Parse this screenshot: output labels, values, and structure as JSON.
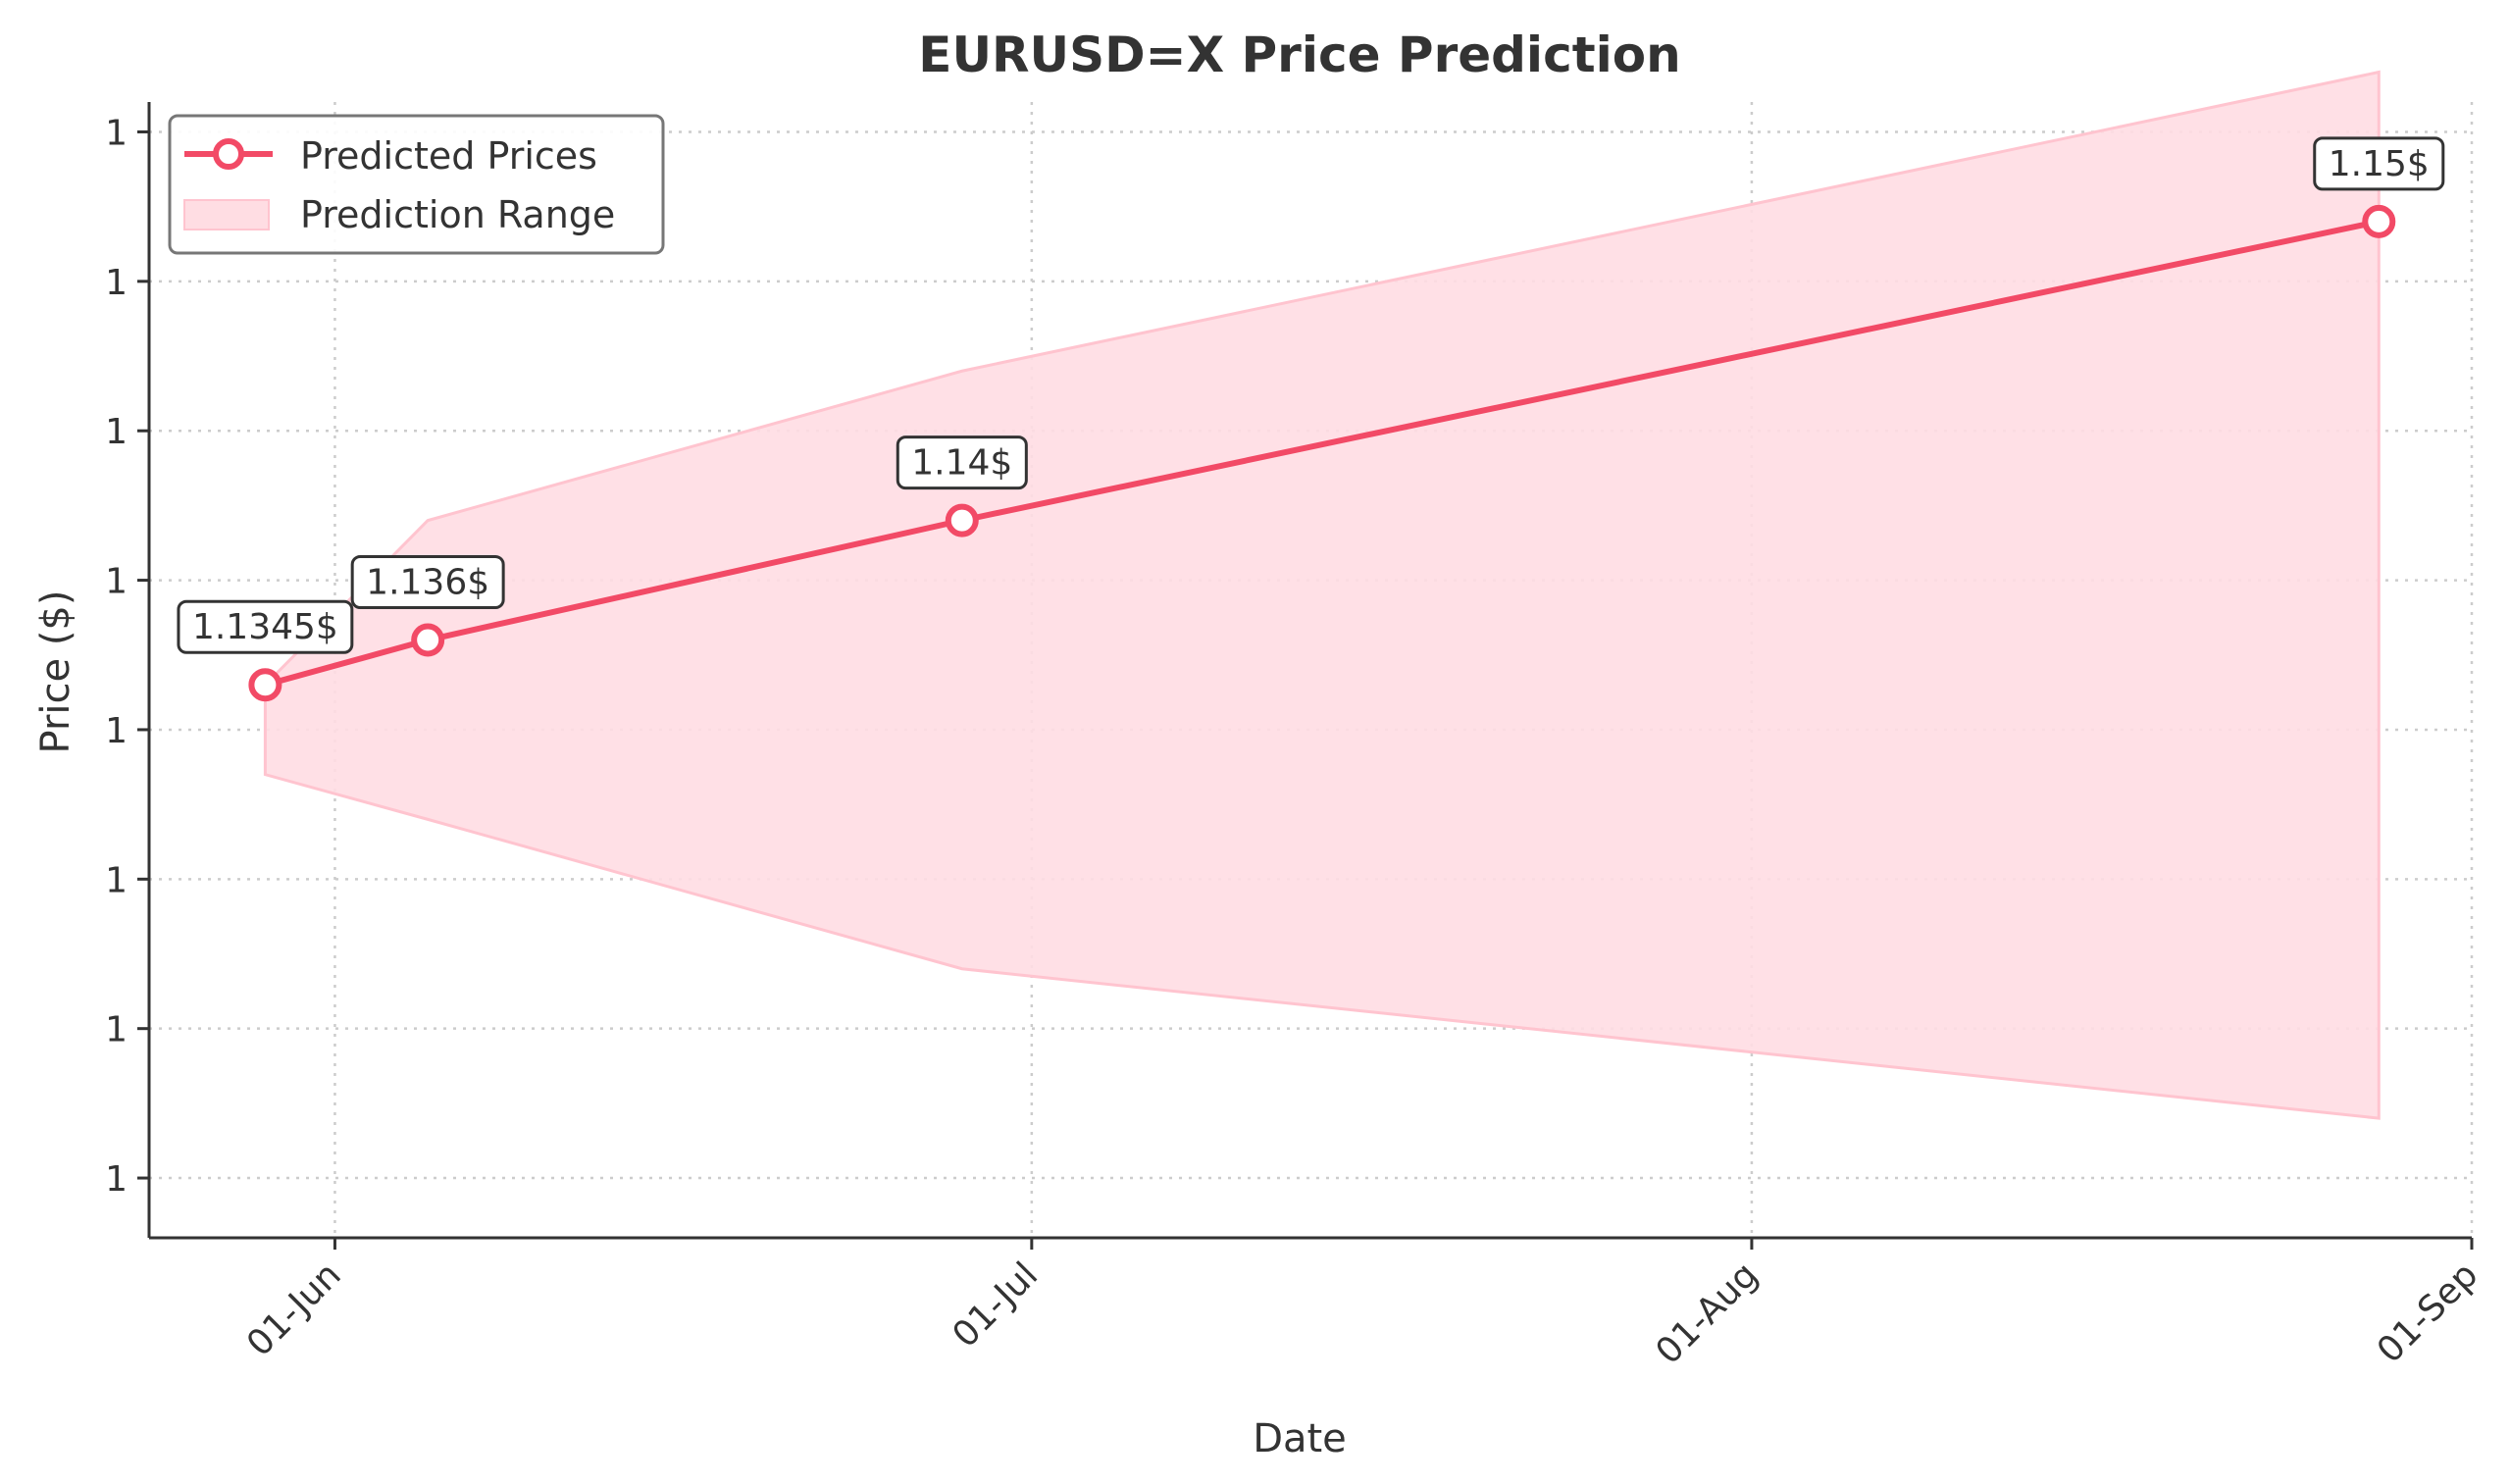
{
  "colors": {
    "line": "#f24a66",
    "band_fill": "#ffdde3",
    "band_edge": "#ffc4cf",
    "axis": "#333333",
    "grid": "#cccccc",
    "text": "#333333"
  },
  "chart_data": {
    "type": "line",
    "title": "EURUSD=X Price Prediction",
    "xlabel": "Date",
    "ylabel": "Price ($)",
    "x_ticks": [
      {
        "date": "2025-06-01",
        "label": "01-Jun"
      },
      {
        "date": "2025-07-01",
        "label": "01-Jul"
      },
      {
        "date": "2025-08-01",
        "label": "01-Aug"
      },
      {
        "date": "2025-09-01",
        "label": "01-Sep"
      }
    ],
    "x_range": [
      "2025-05-24",
      "2025-09-01"
    ],
    "y_range": [
      1.116,
      1.154
    ],
    "y_ticks": [
      {
        "value": 1.118,
        "label": "1"
      },
      {
        "value": 1.123,
        "label": "1"
      },
      {
        "value": 1.128,
        "label": "1"
      },
      {
        "value": 1.133,
        "label": "1"
      },
      {
        "value": 1.138,
        "label": "1"
      },
      {
        "value": 1.143,
        "label": "1"
      },
      {
        "value": 1.148,
        "label": "1"
      },
      {
        "value": 1.153,
        "label": "1"
      }
    ],
    "grid": true,
    "legend": {
      "position": "top-left",
      "entries": [
        {
          "label": "Predicted Prices",
          "kind": "line-marker"
        },
        {
          "label": "Prediction Range",
          "kind": "band"
        }
      ]
    },
    "series": [
      {
        "name": "Predicted Prices",
        "points": [
          {
            "date": "2025-05-29",
            "value": 1.1345,
            "label": "1.1345$"
          },
          {
            "date": "2025-06-05",
            "value": 1.136,
            "label": "1.136$"
          },
          {
            "date": "2025-06-28",
            "value": 1.14,
            "label": "1.14$"
          },
          {
            "date": "2025-08-28",
            "value": 1.15,
            "label": "1.15$"
          }
        ]
      }
    ],
    "range": {
      "name": "Prediction Range",
      "points": [
        {
          "date": "2025-05-29",
          "low": 1.1315,
          "high": 1.1345
        },
        {
          "date": "2025-06-05",
          "low": 1.13,
          "high": 1.14
        },
        {
          "date": "2025-06-28",
          "low": 1.125,
          "high": 1.145
        },
        {
          "date": "2025-08-28",
          "low": 1.12,
          "high": 1.155
        }
      ]
    }
  }
}
